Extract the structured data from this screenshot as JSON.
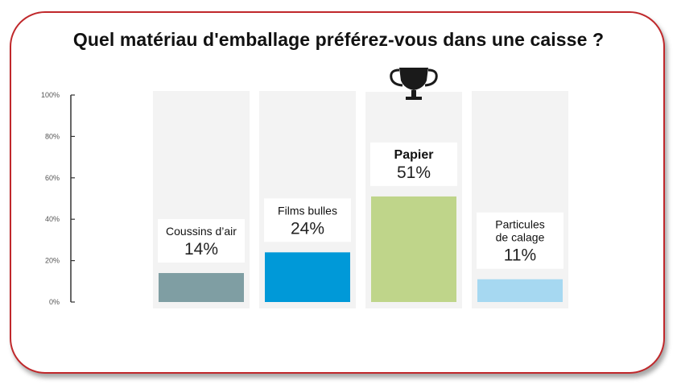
{
  "chart_data": {
    "type": "bar",
    "title": "Quel matériau d'emballage préférez-vous dans une caisse ?",
    "categories": [
      "Coussins d’air",
      "Films bulles",
      "Papier",
      "Particules de calage"
    ],
    "category_lines": [
      [
        "Coussins d’air"
      ],
      [
        "Films bulles"
      ],
      [
        "Papier"
      ],
      [
        "Particules",
        "de calage"
      ]
    ],
    "values": [
      14,
      24,
      51,
      11
    ],
    "value_labels": [
      "14%",
      "24%",
      "51%",
      "11%"
    ],
    "colors": [
      "#7f9ea3",
      "#0099d8",
      "#bfd58a",
      "#a6d8f1"
    ],
    "winner_index": 2,
    "winner_icon": "trophy-icon",
    "ylim": [
      0,
      100
    ],
    "yticks": [
      0,
      20,
      40,
      60,
      80,
      100
    ],
    "ytick_labels": [
      "0%",
      "20%",
      "40%",
      "60%",
      "80%",
      "100%"
    ],
    "grid": false,
    "legend": "none"
  }
}
